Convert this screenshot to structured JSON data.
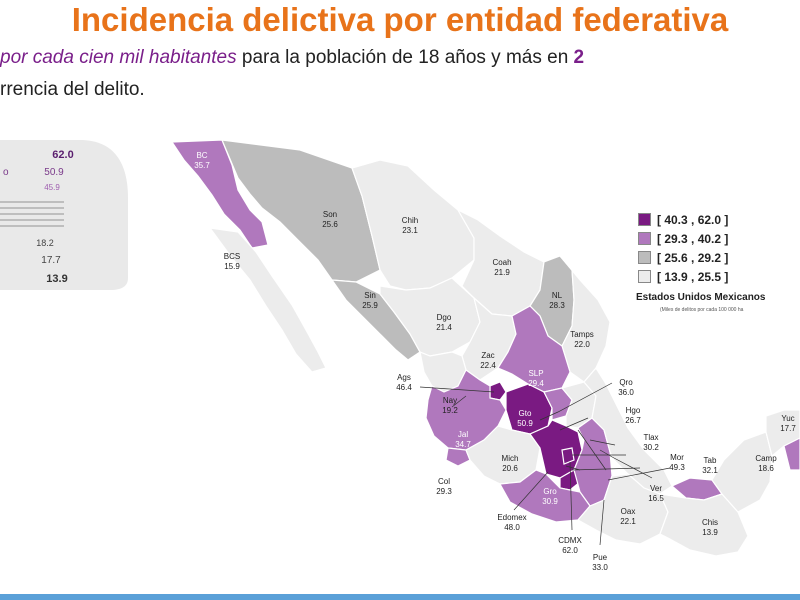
{
  "title": "Incidencia delictiva por entidad federativa",
  "subtitle": {
    "highlight": "por cada cien mil habitantes",
    "rest": " para la población de 18 años y más en ",
    "year_fragment": "2"
  },
  "subtitle2": "rrencia del delito.",
  "side_chart": {
    "values": [
      "62.0",
      "50.9",
      "45.9",
      "18.2",
      "17.7",
      "13.9"
    ],
    "label_fragment": "o"
  },
  "legend": {
    "items": [
      {
        "label": "[ 40.3 , 62.0 ]",
        "color": "#7a1a82"
      },
      {
        "label": "[ 29.3 , 40.2 ]",
        "color": "#b078bd"
      },
      {
        "label": "[ 25.6 , 29.2 ]",
        "color": "#bcbcbc"
      },
      {
        "label": "[ 13.9 , 25.5 ]",
        "color": "#ececec"
      }
    ],
    "title": "Estados Unidos Mexicanos",
    "subtitle": "(Miles de delitos por cada 100 000 ha"
  },
  "states": [
    {
      "abbr": "BC",
      "value": "35.7"
    },
    {
      "abbr": "BCS",
      "value": "15.9"
    },
    {
      "abbr": "Son",
      "value": "25.6"
    },
    {
      "abbr": "Chih",
      "value": "23.1"
    },
    {
      "abbr": "Coah",
      "value": "21.9"
    },
    {
      "abbr": "NL",
      "value": "28.3"
    },
    {
      "abbr": "Tamps",
      "value": "22.0"
    },
    {
      "abbr": "Sin",
      "value": "25.9"
    },
    {
      "abbr": "Dgo",
      "value": "21.4"
    },
    {
      "abbr": "Zac",
      "value": "22.4"
    },
    {
      "abbr": "SLP",
      "value": "29.4"
    },
    {
      "abbr": "Ags",
      "value": "46.4"
    },
    {
      "abbr": "Nay",
      "value": "19.2"
    },
    {
      "abbr": "Gto",
      "value": "50.9"
    },
    {
      "abbr": "Qro",
      "value": "36.0"
    },
    {
      "abbr": "Hgo",
      "value": "26.7"
    },
    {
      "abbr": "Jal",
      "value": "34.7"
    },
    {
      "abbr": "Mich",
      "value": "20.6"
    },
    {
      "abbr": "Tlax",
      "value": "30.2"
    },
    {
      "abbr": "Mor",
      "value": "49.3"
    },
    {
      "abbr": "Tab",
      "value": "32.1"
    },
    {
      "abbr": "Camp",
      "value": "18.6"
    },
    {
      "abbr": "Yuc",
      "value": "17.7"
    },
    {
      "abbr": "Ver",
      "value": "16.5"
    },
    {
      "abbr": "Col",
      "value": "29.3"
    },
    {
      "abbr": "Gro",
      "value": "30.9"
    },
    {
      "abbr": "Oax",
      "value": "22.1"
    },
    {
      "abbr": "Chis",
      "value": "13.9"
    },
    {
      "abbr": "Edomex",
      "value": "48.0"
    },
    {
      "abbr": "CDMX",
      "value": "62.0"
    },
    {
      "abbr": "Pue",
      "value": "33.0"
    }
  ]
}
